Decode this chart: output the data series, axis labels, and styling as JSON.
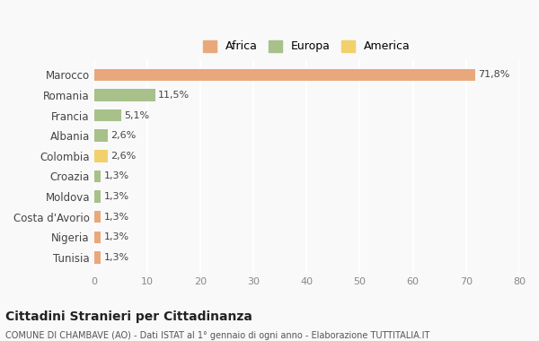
{
  "countries": [
    "Marocco",
    "Romania",
    "Francia",
    "Albania",
    "Colombia",
    "Croazia",
    "Moldova",
    "Costa d'Avorio",
    "Nigeria",
    "Tunisia"
  ],
  "values": [
    71.8,
    11.5,
    5.1,
    2.6,
    2.6,
    1.3,
    1.3,
    1.3,
    1.3,
    1.3
  ],
  "labels": [
    "71,8%",
    "11,5%",
    "5,1%",
    "2,6%",
    "2,6%",
    "1,3%",
    "1,3%",
    "1,3%",
    "1,3%",
    "1,3%"
  ],
  "colors": [
    "#E8A87C",
    "#A8C08A",
    "#A8C08A",
    "#A8C08A",
    "#F2D06B",
    "#A8C08A",
    "#A8C08A",
    "#E8A87C",
    "#E8A87C",
    "#E8A87C"
  ],
  "legend_labels": [
    "Africa",
    "Europa",
    "America"
  ],
  "legend_colors": [
    "#E8A87C",
    "#A8C08A",
    "#F2D06B"
  ],
  "title": "Cittadini Stranieri per Cittadinanza",
  "subtitle": "COMUNE DI CHAMBAVE (AO) - Dati ISTAT al 1° gennaio di ogni anno - Elaborazione TUTTITALIA.IT",
  "xlim": [
    0,
    80
  ],
  "xticks": [
    0,
    10,
    20,
    30,
    40,
    50,
    60,
    70,
    80
  ],
  "background_color": "#f9f9f9",
  "grid_color": "#ffffff",
  "bar_height": 0.6
}
